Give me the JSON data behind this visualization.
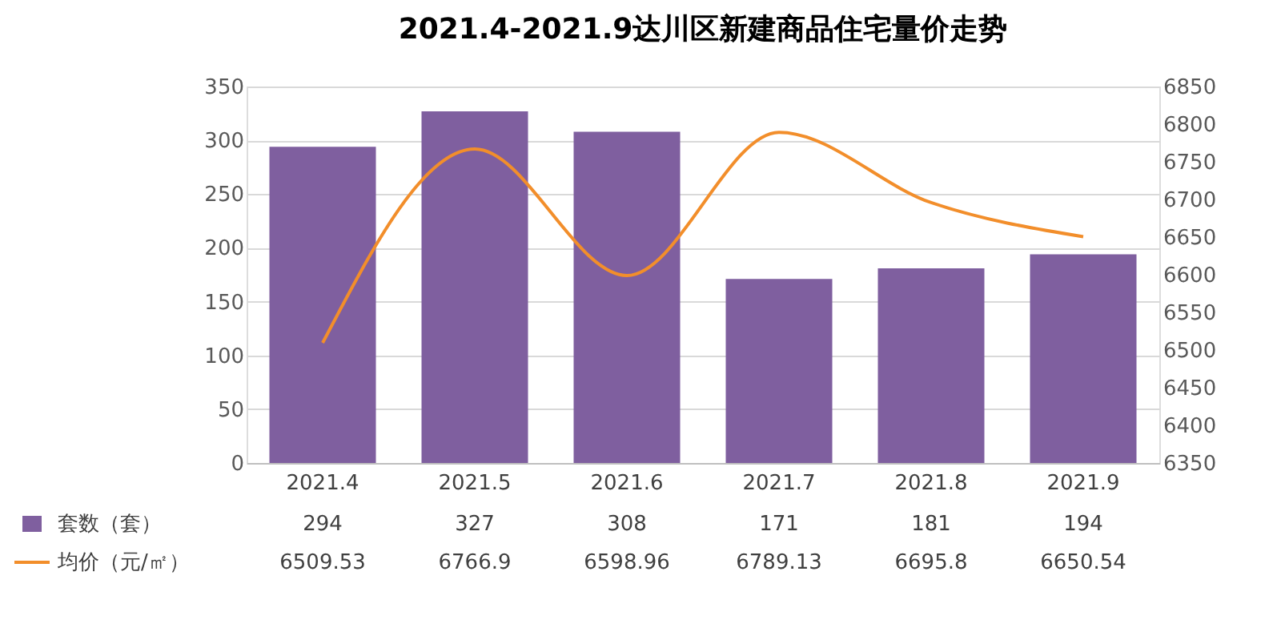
{
  "chart_data": {
    "type": "bar",
    "title": "2021.4-2021.9达川区新建商品住宅量价走势",
    "categories": [
      "2021.4",
      "2021.5",
      "2021.6",
      "2021.7",
      "2021.8",
      "2021.9"
    ],
    "series": [
      {
        "name": "套数（套）",
        "color": "#7f5f9f",
        "values": [
          294,
          327,
          308,
          171,
          181,
          194
        ]
      },
      {
        "name": "均价（元/㎡）",
        "type": "line",
        "axis": "y2",
        "color": "#f28e2b",
        "values": [
          6509.53,
          6766.9,
          6598.96,
          6789.13,
          6695.8,
          6650.54
        ]
      }
    ],
    "ylim": [
      0,
      350
    ],
    "yticks": [
      0,
      50,
      100,
      150,
      200,
      250,
      300,
      350
    ],
    "y2lim": [
      6350,
      6850
    ],
    "y2ticks": [
      6350,
      6400,
      6450,
      6500,
      6550,
      6600,
      6650,
      6700,
      6750,
      6800,
      6850
    ],
    "grid": "y",
    "legend": "bottom",
    "data_labels": true,
    "marker": "none",
    "line_style": "solid"
  }
}
